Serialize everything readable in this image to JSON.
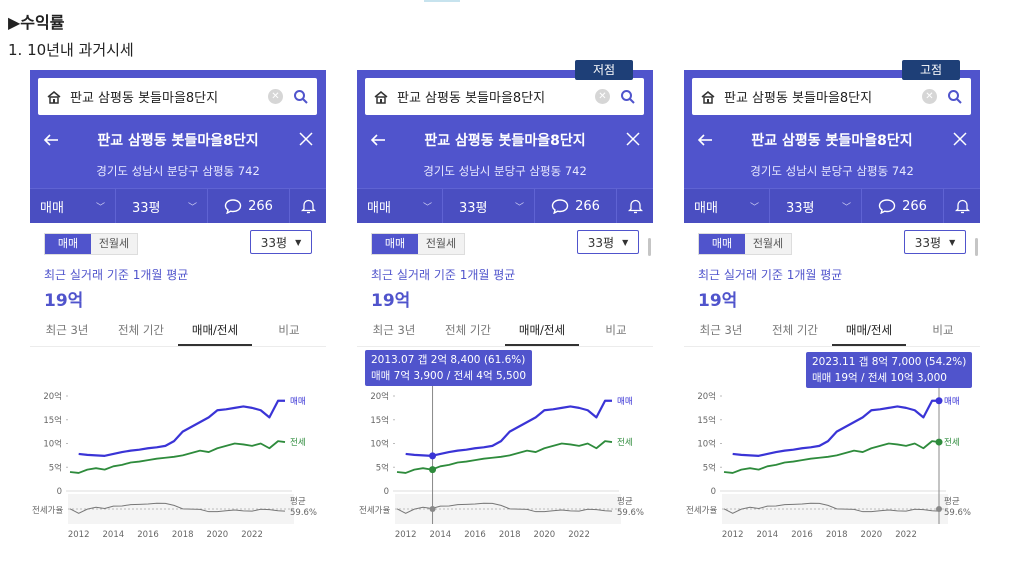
{
  "heading": "▶수익률",
  "subheading": "1. 10년내 과거시세",
  "common": {
    "search_text": "판교 삼평동 봇들마을8단지",
    "title": "판교 삼평동 봇들마을8단지",
    "address": "경기도 성남시 분당구 삼평동 742",
    "filter_trade": "매매",
    "filter_size": "33평",
    "comment_count": "266",
    "toggle_trade": "매매",
    "toggle_rent": "전월세",
    "size_select": "33평",
    "recent_label": "최근 실거래 기준 1개월 평균",
    "price": "19억",
    "tabs": [
      "최근 3년",
      "전체 기간",
      "매매/전세",
      "비교"
    ]
  },
  "panels": [
    {
      "tag": "",
      "tooltip_line1": "",
      "tooltip_line2": ""
    },
    {
      "tag": "저점",
      "tooltip_line1": "2013.07  갭 2억 8,400 (61.6%)",
      "tooltip_line2": "매매 7억 3,900 / 전세 4억 5,500"
    },
    {
      "tag": "고점",
      "tooltip_line1": "2023.11  갭 8억 7,000 (54.2%)",
      "tooltip_line2": "매매 19억 / 전세 10억 3,000"
    }
  ],
  "chart_data": {
    "type": "line",
    "x": [
      2011.5,
      2012,
      2012.5,
      2013,
      2013.5,
      2014,
      2014.5,
      2015,
      2015.5,
      2016,
      2016.5,
      2017,
      2017.5,
      2018,
      2018.5,
      2019,
      2019.5,
      2020,
      2020.5,
      2021,
      2021.5,
      2022,
      2022.5,
      2023,
      2023.5,
      2023.9
    ],
    "series": [
      {
        "name": "매매",
        "values": [
          null,
          7.8,
          7.6,
          7.5,
          7.4,
          7.8,
          8.2,
          8.5,
          8.7,
          9.0,
          9.2,
          9.5,
          10.5,
          12.5,
          13.5,
          14.5,
          15.5,
          17.0,
          17.2,
          17.5,
          17.8,
          17.5,
          17.0,
          15.5,
          19.0,
          19.0
        ]
      },
      {
        "name": "전세",
        "values": [
          4.0,
          3.8,
          4.5,
          4.8,
          4.5,
          5.2,
          5.5,
          6.0,
          6.2,
          6.5,
          6.8,
          7.0,
          7.2,
          7.5,
          8.0,
          8.5,
          8.2,
          9.0,
          9.5,
          10.0,
          9.8,
          9.5,
          10.0,
          9.0,
          10.5,
          10.3
        ]
      }
    ],
    "gap_label": "전세가율",
    "gap_avg_label": "평균",
    "gap_avg_value": "59.6%",
    "xticks": [
      "2012",
      "2014",
      "2016",
      "2018",
      "2020",
      "2022"
    ],
    "yticks": [
      "0",
      "5억",
      "10억",
      "15억",
      "20억"
    ],
    "ylim": [
      0,
      20
    ]
  },
  "colors": {
    "accent": "#5054cc",
    "sale": "#3a34d6",
    "rent": "#2e8b3c",
    "tag": "#1e3f77"
  }
}
